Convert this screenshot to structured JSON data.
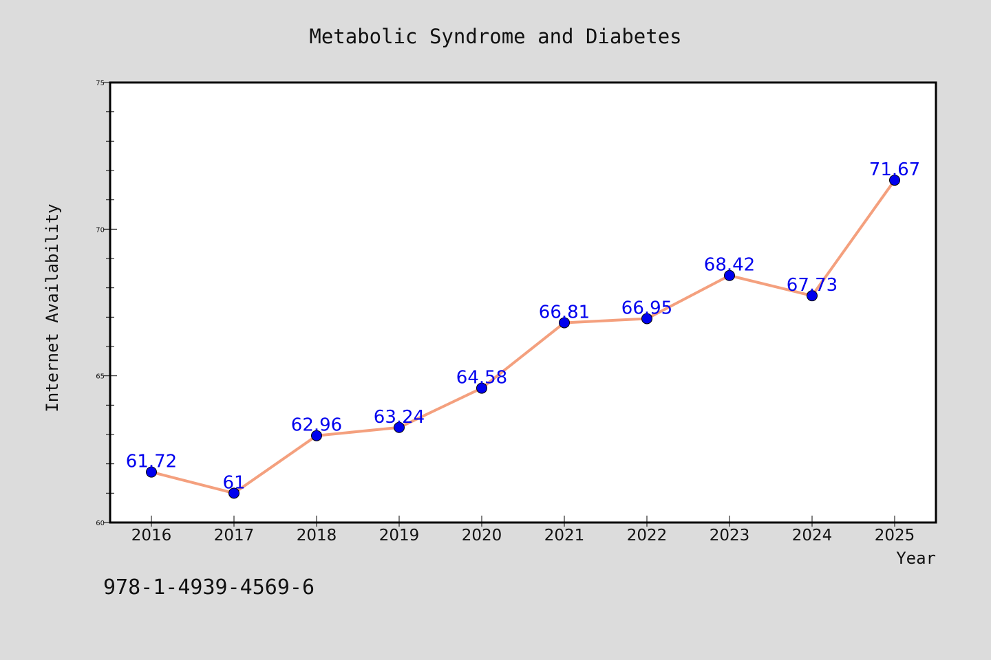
{
  "colors": {
    "background": "#dcdcdc",
    "plot_background": "#ffffff",
    "line": "#f4a07e",
    "marker": "#0000ee",
    "data_label": "#0000ee",
    "frame": "#000000"
  },
  "footnote": "978-1-4939-4569-6",
  "chart_data": {
    "type": "line",
    "title": "Metabolic Syndrome and Diabetes",
    "xlabel": "Year",
    "ylabel": "Internet Availability",
    "categories": [
      "2016",
      "2017",
      "2018",
      "2019",
      "2020",
      "2021",
      "2022",
      "2023",
      "2024",
      "2025"
    ],
    "values": [
      61.72,
      61,
      62.96,
      63.24,
      64.58,
      66.81,
      66.95,
      68.42,
      67.73,
      71.67
    ],
    "data_labels": [
      "61.72",
      "61",
      "62.96",
      "63.24",
      "64.58",
      "66.81",
      "66.95",
      "68.42",
      "67.73",
      "71.67"
    ],
    "ylim": [
      60,
      75
    ],
    "y_major_ticks": [
      60,
      65,
      70,
      75
    ],
    "y_minor_step": 1,
    "grid": false,
    "legend": "none"
  }
}
